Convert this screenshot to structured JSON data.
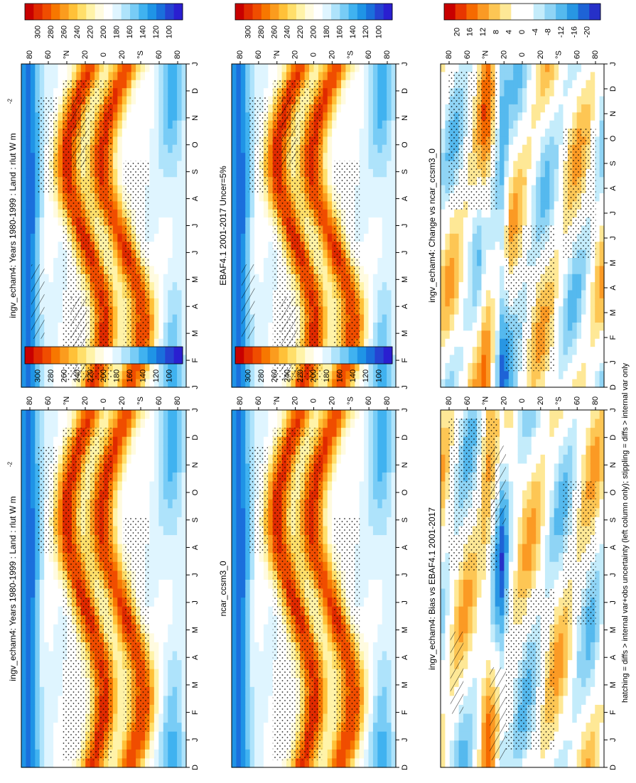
{
  "chart_data": [
    {
      "type": "heatmap",
      "id": "p_mod_left",
      "title": "ingv_echam4: Years 1980-1999 : Land : rlut W m",
      "title_sup": "-2",
      "months": [
        "J",
        "F",
        "M",
        "A",
        "M",
        "J",
        "J",
        "A",
        "S",
        "O",
        "N",
        "D",
        "J"
      ],
      "lat_ticks": [
        "80",
        "60",
        "°N",
        "20",
        "0",
        "20",
        "°S",
        "60",
        "80"
      ],
      "lat_range": [
        -90,
        90
      ],
      "colorbar_ticks": [
        "300",
        "280",
        "260",
        "240",
        "220",
        "200",
        "180",
        "160",
        "140",
        "120",
        "100"
      ],
      "value_range": [
        90,
        310
      ],
      "overlay": "stipple+hatch"
    },
    {
      "type": "heatmap",
      "id": "p_mod_right",
      "title": "ingv_echam4: Years 1980-1999 : Land : rlut W m",
      "title_sup": "-2",
      "months": [
        "D",
        "J",
        "F",
        "M",
        "A",
        "M",
        "J",
        "J",
        "A",
        "S",
        "O",
        "N",
        "D",
        "J"
      ],
      "lat_ticks": [
        "80",
        "60",
        "°N",
        "20",
        "0",
        "20",
        "°S",
        "60",
        "80"
      ],
      "colorbar_ticks": [
        "300",
        "280",
        "260",
        "240",
        "220",
        "200",
        "180",
        "160",
        "140",
        "120",
        "100"
      ],
      "overlay": "stipple"
    },
    {
      "type": "heatmap",
      "id": "p_obs",
      "title": "EBAF4.1 2001-2017 Uncer=5%",
      "months": [
        "J",
        "F",
        "M",
        "A",
        "M",
        "J",
        "J",
        "A",
        "S",
        "O",
        "N",
        "D",
        "J"
      ],
      "colorbar_ticks": [
        "300",
        "280",
        "260",
        "240",
        "220",
        "200",
        "180",
        "160",
        "140",
        "120",
        "100"
      ],
      "overlay": "stipple+hatch"
    },
    {
      "type": "heatmap",
      "id": "p_ref",
      "title": "ncar_ccsm3_0",
      "months": [
        "D",
        "J",
        "F",
        "M",
        "A",
        "M",
        "J",
        "J",
        "A",
        "S",
        "O",
        "N",
        "D",
        "J"
      ],
      "colorbar_ticks": [
        "300",
        "280",
        "260",
        "240",
        "220",
        "200",
        "180",
        "160",
        "140",
        "120",
        "100"
      ],
      "overlay": "stipple"
    },
    {
      "type": "heatmap",
      "id": "p_bias",
      "title": "ingv_echam4: Bias vs EBAF4.1 2001-2017",
      "months": [
        "D",
        "J",
        "F",
        "M",
        "A",
        "M",
        "J",
        "J",
        "A",
        "S",
        "O",
        "N",
        "D",
        "J"
      ],
      "colorbar_ticks": [
        "20",
        "16",
        "12",
        "8",
        "4",
        "0",
        "-4",
        "-8",
        "-12",
        "-16",
        "-20"
      ],
      "value_range": [
        -22,
        22
      ],
      "overlay": "stipple+hatch"
    },
    {
      "type": "heatmap",
      "id": "p_change",
      "title": "ingv_echam4: Change vs ncar_ccsm3_0",
      "months": [
        "D",
        "J",
        "F",
        "M",
        "A",
        "M",
        "J",
        "J",
        "A",
        "S",
        "O",
        "N",
        "D",
        "J"
      ],
      "colorbar_ticks": [
        "20",
        "16",
        "12",
        "8",
        "4",
        "0",
        "-4",
        "-8",
        "-12",
        "-16",
        "-20"
      ],
      "overlay": "stipple"
    }
  ],
  "footnote": "hatching = diffs > internal var+obs uncertainty (left column only); stippling = diffs > internal var only",
  "colors": {
    "abs_scale": [
      "#c80000",
      "#e02a00",
      "#f04d00",
      "#f77700",
      "#fb9c1e",
      "#ffc138",
      "#ffdf6a",
      "#fff3a8",
      "#fffbe0",
      "#ffffff",
      "#dff5ff",
      "#aee3fb",
      "#78ccf6",
      "#40b2f0",
      "#1f94e6",
      "#1a6fdc",
      "#2543d2",
      "#2a1fd0"
    ],
    "diff_scale": [
      "#c80000",
      "#e83600",
      "#f66a00",
      "#fb9a24",
      "#fdc654",
      "#fee896",
      "#ffffff",
      "#ffffff",
      "#c4ecfb",
      "#8fd4f5",
      "#55b9ee",
      "#2896e3",
      "#1e63d6",
      "#2630c8"
    ]
  }
}
